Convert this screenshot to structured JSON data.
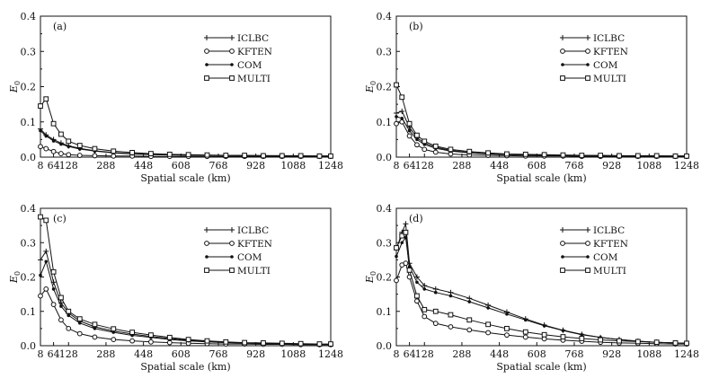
{
  "chart_data": [
    {
      "type": "line",
      "panel_label": "(a)",
      "xlabel": "Spatial scale (km)",
      "ylabel": "E",
      "ylabel_sub": "0",
      "xlim": [
        8,
        1248
      ],
      "ylim": [
        0,
        0.4
      ],
      "x_ticks": [
        8,
        64,
        128,
        288,
        448,
        608,
        768,
        928,
        1088,
        1248
      ],
      "y_ticks": [
        "0.0",
        "0.1",
        "0.2",
        "0.3",
        "0.4"
      ],
      "legend_position": "top-right",
      "series": [
        {
          "name": "ICLBC",
          "x": [
            8,
            32,
            64,
            96,
            128,
            176,
            240,
            320,
            400,
            480,
            560,
            640,
            720,
            800,
            880,
            960,
            1040,
            1120,
            1200,
            1248
          ],
          "values": [
            0.08,
            0.063,
            0.05,
            0.04,
            0.032,
            0.025,
            0.018,
            0.013,
            0.01,
            0.008,
            0.007,
            0.006,
            0.005,
            0.005,
            0.004,
            0.004,
            0.004,
            0.003,
            0.003,
            0.003
          ]
        },
        {
          "name": "KFTEN",
          "x": [
            8,
            32,
            64,
            96,
            128,
            176,
            240,
            320,
            400,
            480,
            560,
            640,
            720,
            800,
            880,
            960,
            1040,
            1120,
            1200,
            1248
          ],
          "values": [
            0.03,
            0.024,
            0.016,
            0.01,
            0.007,
            0.005,
            0.004,
            0.003,
            0.003,
            0.002,
            0.002,
            0.002,
            0.002,
            0.002,
            0.002,
            0.002,
            0.002,
            0.002,
            0.002,
            0.002
          ]
        },
        {
          "name": "COM",
          "x": [
            8,
            32,
            64,
            96,
            128,
            176,
            240,
            320,
            400,
            480,
            560,
            640,
            720,
            800,
            880,
            960,
            1040,
            1120,
            1200,
            1248
          ],
          "values": [
            0.075,
            0.06,
            0.046,
            0.037,
            0.03,
            0.023,
            0.017,
            0.012,
            0.009,
            0.007,
            0.006,
            0.005,
            0.005,
            0.004,
            0.004,
            0.004,
            0.003,
            0.003,
            0.003,
            0.003
          ]
        },
        {
          "name": "MULTI",
          "x": [
            8,
            32,
            64,
            96,
            128,
            176,
            240,
            320,
            400,
            480,
            560,
            640,
            720,
            800,
            880,
            960,
            1040,
            1120,
            1200,
            1248
          ],
          "values": [
            0.145,
            0.165,
            0.095,
            0.065,
            0.045,
            0.033,
            0.024,
            0.017,
            0.013,
            0.01,
            0.008,
            0.007,
            0.006,
            0.005,
            0.005,
            0.004,
            0.004,
            0.004,
            0.003,
            0.003
          ]
        }
      ]
    },
    {
      "type": "line",
      "panel_label": "(b)",
      "xlabel": "Spatial scale (km)",
      "ylabel": "E",
      "ylabel_sub": "0",
      "xlim": [
        8,
        1248
      ],
      "ylim": [
        0,
        0.4
      ],
      "x_ticks": [
        8,
        64,
        128,
        288,
        448,
        608,
        768,
        928,
        1088,
        1248
      ],
      "y_ticks": [
        "0.0",
        "0.1",
        "0.2",
        "0.3",
        "0.4"
      ],
      "legend_position": "top-right",
      "series": [
        {
          "name": "ICLBC",
          "x": [
            8,
            32,
            64,
            96,
            128,
            176,
            240,
            320,
            400,
            480,
            560,
            640,
            720,
            800,
            880,
            960,
            1040,
            1120,
            1200,
            1248
          ],
          "values": [
            0.125,
            0.13,
            0.085,
            0.055,
            0.04,
            0.028,
            0.019,
            0.013,
            0.01,
            0.008,
            0.006,
            0.005,
            0.005,
            0.004,
            0.004,
            0.004,
            0.003,
            0.003,
            0.003,
            0.003
          ]
        },
        {
          "name": "KFTEN",
          "x": [
            8,
            32,
            64,
            96,
            128,
            176,
            240,
            320,
            400,
            480,
            560,
            640,
            720,
            800,
            880,
            960,
            1040,
            1120,
            1200,
            1248
          ],
          "values": [
            0.095,
            0.1,
            0.06,
            0.035,
            0.022,
            0.014,
            0.009,
            0.006,
            0.005,
            0.004,
            0.003,
            0.003,
            0.003,
            0.002,
            0.002,
            0.002,
            0.002,
            0.002,
            0.002,
            0.002
          ]
        },
        {
          "name": "COM",
          "x": [
            8,
            32,
            64,
            96,
            128,
            176,
            240,
            320,
            400,
            480,
            560,
            640,
            720,
            800,
            880,
            960,
            1040,
            1120,
            1200,
            1248
          ],
          "values": [
            0.115,
            0.11,
            0.075,
            0.05,
            0.036,
            0.025,
            0.017,
            0.012,
            0.009,
            0.007,
            0.006,
            0.005,
            0.004,
            0.004,
            0.004,
            0.003,
            0.003,
            0.003,
            0.003,
            0.003
          ]
        },
        {
          "name": "MULTI",
          "x": [
            8,
            32,
            64,
            96,
            128,
            176,
            240,
            320,
            400,
            480,
            560,
            640,
            720,
            800,
            880,
            960,
            1040,
            1120,
            1200,
            1248
          ],
          "values": [
            0.205,
            0.17,
            0.095,
            0.062,
            0.045,
            0.031,
            0.022,
            0.016,
            0.012,
            0.009,
            0.008,
            0.007,
            0.006,
            0.005,
            0.005,
            0.004,
            0.004,
            0.004,
            0.003,
            0.003
          ]
        }
      ]
    },
    {
      "type": "line",
      "panel_label": "(c)",
      "xlabel": "Spatial scale (km)",
      "ylabel": "E",
      "ylabel_sub": "0",
      "xlim": [
        8,
        1248
      ],
      "ylim": [
        0,
        0.4
      ],
      "x_ticks": [
        8,
        64,
        128,
        288,
        448,
        608,
        768,
        928,
        1088,
        1248
      ],
      "y_ticks": [
        "0.0",
        "0.1",
        "0.2",
        "0.3",
        "0.4"
      ],
      "legend_position": "top-right",
      "series": [
        {
          "name": "ICLBC",
          "x": [
            8,
            32,
            64,
            96,
            128,
            176,
            240,
            320,
            400,
            480,
            560,
            640,
            720,
            800,
            880,
            960,
            1040,
            1120,
            1200,
            1248
          ],
          "values": [
            0.25,
            0.275,
            0.185,
            0.125,
            0.095,
            0.072,
            0.055,
            0.043,
            0.034,
            0.027,
            0.021,
            0.016,
            0.013,
            0.01,
            0.008,
            0.007,
            0.006,
            0.005,
            0.004,
            0.004
          ]
        },
        {
          "name": "KFTEN",
          "x": [
            8,
            32,
            64,
            96,
            128,
            176,
            240,
            320,
            400,
            480,
            560,
            640,
            720,
            800,
            880,
            960,
            1040,
            1120,
            1200,
            1248
          ],
          "values": [
            0.145,
            0.165,
            0.12,
            0.075,
            0.05,
            0.035,
            0.025,
            0.018,
            0.014,
            0.011,
            0.009,
            0.007,
            0.006,
            0.005,
            0.005,
            0.004,
            0.004,
            0.003,
            0.003,
            0.003
          ]
        },
        {
          "name": "COM",
          "x": [
            8,
            32,
            64,
            96,
            128,
            176,
            240,
            320,
            400,
            480,
            560,
            640,
            720,
            800,
            880,
            960,
            1040,
            1120,
            1200,
            1248
          ],
          "values": [
            0.205,
            0.245,
            0.165,
            0.115,
            0.088,
            0.066,
            0.05,
            0.039,
            0.03,
            0.024,
            0.018,
            0.014,
            0.011,
            0.009,
            0.007,
            0.006,
            0.005,
            0.004,
            0.004,
            0.004
          ]
        },
        {
          "name": "MULTI",
          "x": [
            8,
            32,
            64,
            96,
            128,
            176,
            240,
            320,
            400,
            480,
            560,
            640,
            720,
            800,
            880,
            960,
            1040,
            1120,
            1200,
            1248
          ],
          "values": [
            0.375,
            0.365,
            0.215,
            0.14,
            0.1,
            0.078,
            0.062,
            0.049,
            0.039,
            0.031,
            0.024,
            0.018,
            0.014,
            0.011,
            0.009,
            0.008,
            0.007,
            0.006,
            0.005,
            0.005
          ]
        }
      ]
    },
    {
      "type": "line",
      "panel_label": "(d)",
      "xlabel": "Spatial scale (km)",
      "ylabel": "E",
      "ylabel_sub": "0",
      "xlim": [
        8,
        1248
      ],
      "ylim": [
        0,
        0.4
      ],
      "x_ticks": [
        8,
        64,
        128,
        288,
        448,
        608,
        768,
        928,
        1088,
        1248
      ],
      "y_ticks": [
        "0.0",
        "0.1",
        "0.2",
        "0.3",
        "0.4"
      ],
      "legend_position": "top-right",
      "series": [
        {
          "name": "ICLBC",
          "x": [
            8,
            32,
            48,
            64,
            96,
            128,
            176,
            240,
            320,
            400,
            480,
            560,
            640,
            720,
            800,
            880,
            960,
            1040,
            1120,
            1200,
            1248
          ],
          "values": [
            0.28,
            0.33,
            0.355,
            0.24,
            0.2,
            0.175,
            0.165,
            0.155,
            0.138,
            0.118,
            0.098,
            0.078,
            0.06,
            0.045,
            0.033,
            0.024,
            0.018,
            0.013,
            0.01,
            0.008,
            0.007
          ]
        },
        {
          "name": "KFTEN",
          "x": [
            8,
            32,
            48,
            64,
            96,
            128,
            176,
            240,
            320,
            400,
            480,
            560,
            640,
            720,
            800,
            880,
            960,
            1040,
            1120,
            1200,
            1248
          ],
          "values": [
            0.19,
            0.235,
            0.24,
            0.2,
            0.13,
            0.085,
            0.065,
            0.055,
            0.046,
            0.038,
            0.031,
            0.025,
            0.02,
            0.016,
            0.013,
            0.01,
            0.008,
            0.007,
            0.006,
            0.005,
            0.005
          ]
        },
        {
          "name": "COM",
          "x": [
            8,
            32,
            48,
            64,
            96,
            128,
            176,
            240,
            320,
            400,
            480,
            560,
            640,
            720,
            800,
            880,
            960,
            1040,
            1120,
            1200,
            1248
          ],
          "values": [
            0.26,
            0.3,
            0.315,
            0.23,
            0.185,
            0.165,
            0.155,
            0.145,
            0.128,
            0.11,
            0.092,
            0.075,
            0.058,
            0.044,
            0.032,
            0.024,
            0.018,
            0.013,
            0.01,
            0.008,
            0.007
          ]
        },
        {
          "name": "MULTI",
          "x": [
            8,
            32,
            48,
            64,
            96,
            128,
            176,
            240,
            320,
            400,
            480,
            560,
            640,
            720,
            800,
            880,
            960,
            1040,
            1120,
            1200,
            1248
          ],
          "values": [
            0.285,
            0.32,
            0.33,
            0.22,
            0.145,
            0.105,
            0.1,
            0.09,
            0.075,
            0.062,
            0.05,
            0.04,
            0.032,
            0.026,
            0.021,
            0.017,
            0.014,
            0.012,
            0.01,
            0.008,
            0.007
          ]
        }
      ]
    }
  ]
}
